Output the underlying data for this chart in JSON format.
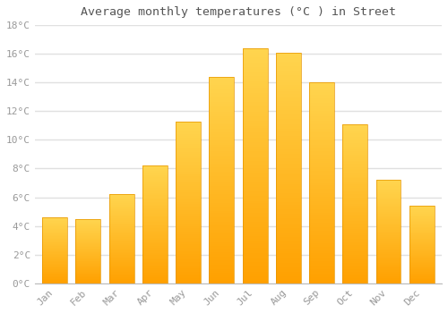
{
  "title": "Average monthly temperatures (°C ) in Street",
  "months": [
    "Jan",
    "Feb",
    "Mar",
    "Apr",
    "May",
    "Jun",
    "Jul",
    "Aug",
    "Sep",
    "Oct",
    "Nov",
    "Dec"
  ],
  "temperatures": [
    4.6,
    4.5,
    6.2,
    8.2,
    11.3,
    14.4,
    16.4,
    16.1,
    14.0,
    11.1,
    7.2,
    5.4
  ],
  "bar_color_top": "#FFD54F",
  "bar_color_bottom": "#FFA000",
  "bar_edge_color": "#E69500",
  "background_color": "#FFFFFF",
  "grid_color": "#E0E0E0",
  "tick_label_color": "#999999",
  "title_color": "#555555",
  "ylim": [
    0,
    18
  ],
  "ytick_step": 2,
  "bar_width": 0.75
}
